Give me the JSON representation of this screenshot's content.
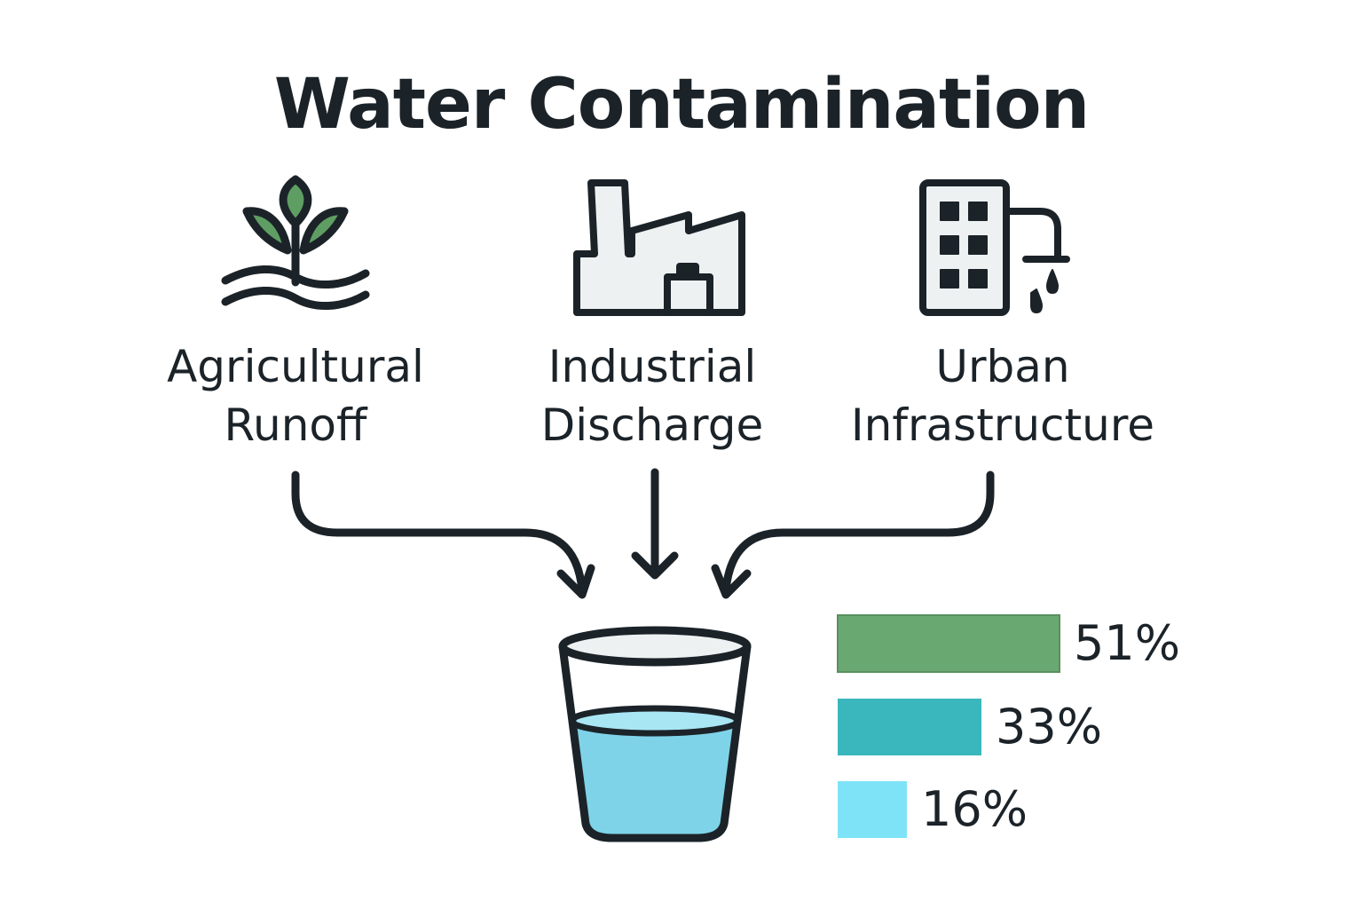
{
  "title": "Water Contamination",
  "sources": [
    {
      "id": "agricultural",
      "line1": "Agricultural",
      "line2": "Runoff",
      "icon": "plant-sprout-icon"
    },
    {
      "id": "industrial",
      "line1": "Industrial",
      "line2": "Discharge",
      "icon": "factory-icon"
    },
    {
      "id": "urban",
      "line1": "Urban",
      "line2": "Infrastructure",
      "icon": "building-pipe-icon"
    }
  ],
  "chart_data": {
    "type": "bar",
    "orientation": "horizontal",
    "categories": [
      "Agricultural Runoff",
      "Industrial Discharge",
      "Urban Infrastructure"
    ],
    "values": [
      51,
      33,
      16
    ],
    "value_labels": [
      "51%",
      "33%",
      "16%"
    ],
    "colors": [
      "#6aa872",
      "#3ab7bc",
      "#7fe3f7"
    ],
    "xlim": [
      0,
      100
    ]
  },
  "colors": {
    "outline": "#1b2329",
    "leaf": "#5f9e62",
    "icon_fill": "#eef1f2",
    "water": "#7fd3e8",
    "water_top": "#a9e6f4"
  }
}
